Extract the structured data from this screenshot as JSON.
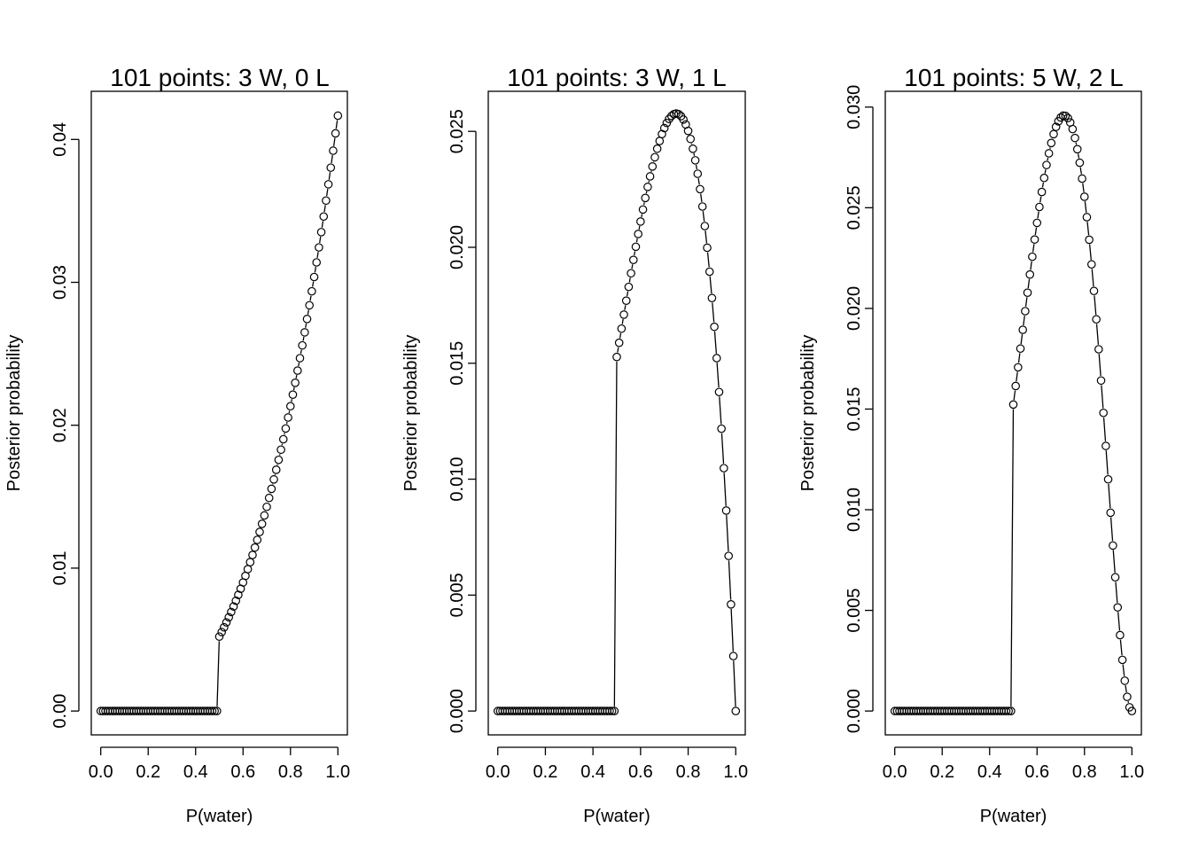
{
  "chart_data": [
    {
      "type": "scatter",
      "title": "101 points: 3 W, 0 L",
      "xlabel": "P(water)",
      "ylabel": "Posterior probability",
      "xlim": [
        0,
        1
      ],
      "ylim": [
        0,
        0.0417
      ],
      "x_ticks": [
        "0.0",
        "0.2",
        "0.4",
        "0.6",
        "0.8",
        "1.0"
      ],
      "y_ticks": [
        "0.00",
        "0.01",
        "0.02",
        "0.03",
        "0.04"
      ],
      "grid": false,
      "point_style": "open-circle",
      "connecting_line": true,
      "series": [
        {
          "water": 3,
          "land": 0,
          "n_points": 101,
          "prior": "step at 0.5"
        }
      ]
    },
    {
      "type": "scatter",
      "title": "101 points: 3 W, 1 L",
      "xlabel": "P(water)",
      "ylabel": "Posterior probability",
      "xlim": [
        0,
        1
      ],
      "ylim": [
        0,
        0.0257
      ],
      "x_ticks": [
        "0.0",
        "0.2",
        "0.4",
        "0.6",
        "0.8",
        "1.0"
      ],
      "y_ticks": [
        "0.000",
        "0.005",
        "0.010",
        "0.015",
        "0.020",
        "0.025"
      ],
      "grid": false,
      "point_style": "open-circle",
      "connecting_line": true,
      "series": [
        {
          "water": 3,
          "land": 1,
          "n_points": 101,
          "prior": "step at 0.5"
        }
      ]
    },
    {
      "type": "scatter",
      "title": "101 points: 5 W, 2 L",
      "xlabel": "P(water)",
      "ylabel": "Posterior probability",
      "xlim": [
        0,
        1
      ],
      "ylim": [
        0,
        0.0296
      ],
      "x_ticks": [
        "0.0",
        "0.2",
        "0.4",
        "0.6",
        "0.8",
        "1.0"
      ],
      "y_ticks": [
        "0.000",
        "0.005",
        "0.010",
        "0.015",
        "0.020",
        "0.025",
        "0.030"
      ],
      "grid": false,
      "point_style": "open-circle",
      "connecting_line": true,
      "series": [
        {
          "water": 5,
          "land": 2,
          "n_points": 101,
          "prior": "step at 0.5"
        }
      ]
    }
  ]
}
